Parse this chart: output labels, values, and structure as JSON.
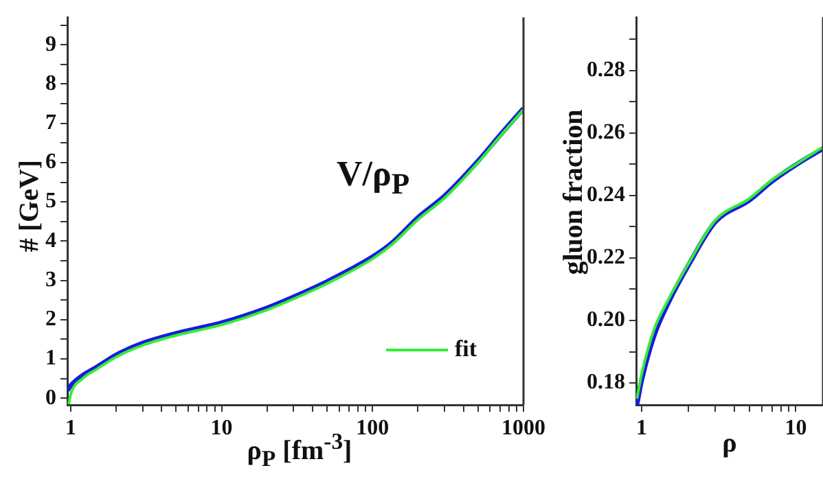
{
  "chart_data": [
    {
      "type": "line",
      "xlabel": "ρ$_{P}$ [fm$^{-3}$]",
      "ylabel": "# [GeV]",
      "annotations": [
        "V/ρ$_{P}$"
      ],
      "log": "x",
      "grid": false,
      "legend": "bottom right",
      "marker": "none",
      "line_style": "solid",
      "x": [
        0.95,
        1,
        1.2,
        1.5,
        2,
        3,
        5,
        7,
        10,
        20,
        30,
        50,
        100,
        135,
        200,
        300,
        500,
        700,
        1000
      ],
      "xlim": [
        0.95,
        1000
      ],
      "xticks": [
        1,
        {
          "value": 2,
          "label": null
        },
        {
          "value": 3,
          "label": null
        },
        {
          "value": 4,
          "label": null
        },
        {
          "value": 5,
          "label": null
        },
        {
          "value": 6,
          "label": null
        },
        {
          "value": 7,
          "label": null
        },
        {
          "value": 8,
          "label": null
        },
        {
          "value": 9,
          "label": null
        },
        10,
        {
          "value": 20,
          "label": null
        },
        {
          "value": 30,
          "label": null
        },
        {
          "value": 40,
          "label": null
        },
        {
          "value": 50,
          "label": null
        },
        {
          "value": 60,
          "label": null
        },
        {
          "value": 70,
          "label": null
        },
        {
          "value": 80,
          "label": null
        },
        {
          "value": 90,
          "label": null
        },
        100,
        {
          "value": 200,
          "label": null
        },
        {
          "value": 300,
          "label": null
        },
        {
          "value": 400,
          "label": null
        },
        {
          "value": 500,
          "label": null
        },
        {
          "value": 600,
          "label": null
        },
        {
          "value": 700,
          "label": null
        },
        {
          "value": 800,
          "label": null
        },
        {
          "value": 900,
          "label": null
        },
        1000
      ],
      "ylim": [
        -0.17,
        9.7
      ],
      "yticks": [
        0,
        {
          "value": 0.5,
          "label": null
        },
        1,
        {
          "value": 1.5,
          "label": null
        },
        2,
        {
          "value": 2.5,
          "label": null
        },
        3,
        {
          "value": 3.5,
          "label": null
        },
        4,
        {
          "value": 4.5,
          "label": null
        },
        5,
        {
          "value": 5.5,
          "label": null
        },
        6,
        {
          "value": 6.5,
          "label": null
        },
        7,
        {
          "value": 7.5,
          "label": null
        },
        8,
        {
          "value": 8.5,
          "label": null
        },
        9,
        {
          "value": 9.5,
          "label": null
        }
      ],
      "series": [
        {
          "color": "#1a1ae0",
          "values": [
            0.2,
            0.32,
            0.58,
            0.8,
            1.1,
            1.4,
            1.65,
            1.78,
            1.92,
            2.3,
            2.58,
            2.97,
            3.6,
            3.96,
            4.6,
            5.15,
            6.04,
            6.7,
            7.38
          ]
        },
        {
          "name": "fit",
          "color": "#33ee33",
          "x": [
            0.97,
            1,
            1.2,
            1.5,
            2,
            3,
            5,
            7,
            10,
            20,
            30,
            50,
            100,
            135,
            200,
            300,
            500,
            700,
            1000
          ],
          "values": [
            -0.15,
            0.1,
            0.5,
            0.75,
            1.05,
            1.35,
            1.6,
            1.73,
            1.87,
            2.25,
            2.53,
            2.92,
            3.55,
            3.92,
            4.55,
            5.1,
            6.0,
            6.67,
            7.35
          ]
        }
      ]
    },
    {
      "type": "line",
      "xlabel": "ρ",
      "ylabel": "gluon fraction",
      "log": "x",
      "grid": false,
      "legend": false,
      "marker": "none",
      "line_style": "solid",
      "x": [
        0.93,
        1,
        1.2,
        1.5,
        2,
        3,
        5,
        7,
        10,
        15
      ],
      "xlim": [
        0.92,
        15
      ],
      "xticks": [
        1,
        {
          "value": 2,
          "label": null
        },
        {
          "value": 3,
          "label": null
        },
        {
          "value": 4,
          "label": null
        },
        {
          "value": 5,
          "label": null
        },
        {
          "value": 6,
          "label": null
        },
        {
          "value": 7,
          "label": null
        },
        {
          "value": 8,
          "label": null
        },
        {
          "value": 9,
          "label": null
        },
        10
      ],
      "ylim": [
        0.173,
        0.297
      ],
      "yticks": [
        {
          "value": 0.18,
          "label": "0.18"
        },
        {
          "value": 0.19,
          "label": null
        },
        {
          "value": 0.2,
          "label": "0.20"
        },
        {
          "value": 0.21,
          "label": null
        },
        {
          "value": 0.22,
          "label": "0.22"
        },
        {
          "value": 0.23,
          "label": null
        },
        {
          "value": 0.24,
          "label": "0.24"
        },
        {
          "value": 0.25,
          "label": null
        },
        {
          "value": 0.26,
          "label": "0.26"
        },
        {
          "value": 0.27,
          "label": null
        },
        {
          "value": 0.28,
          "label": "0.28"
        },
        {
          "value": 0.29,
          "label": null
        }
      ],
      "series": [
        {
          "color": "#1a1ae0",
          "values": [
            0.173,
            0.181,
            0.195,
            0.206,
            0.2175,
            0.2315,
            0.2385,
            0.2445,
            0.2498,
            0.255
          ]
        },
        {
          "color": "#33ee33",
          "values": [
            0.175,
            0.183,
            0.197,
            0.207,
            0.218,
            0.232,
            0.239,
            0.245,
            0.25,
            0.2555
          ]
        }
      ]
    }
  ]
}
